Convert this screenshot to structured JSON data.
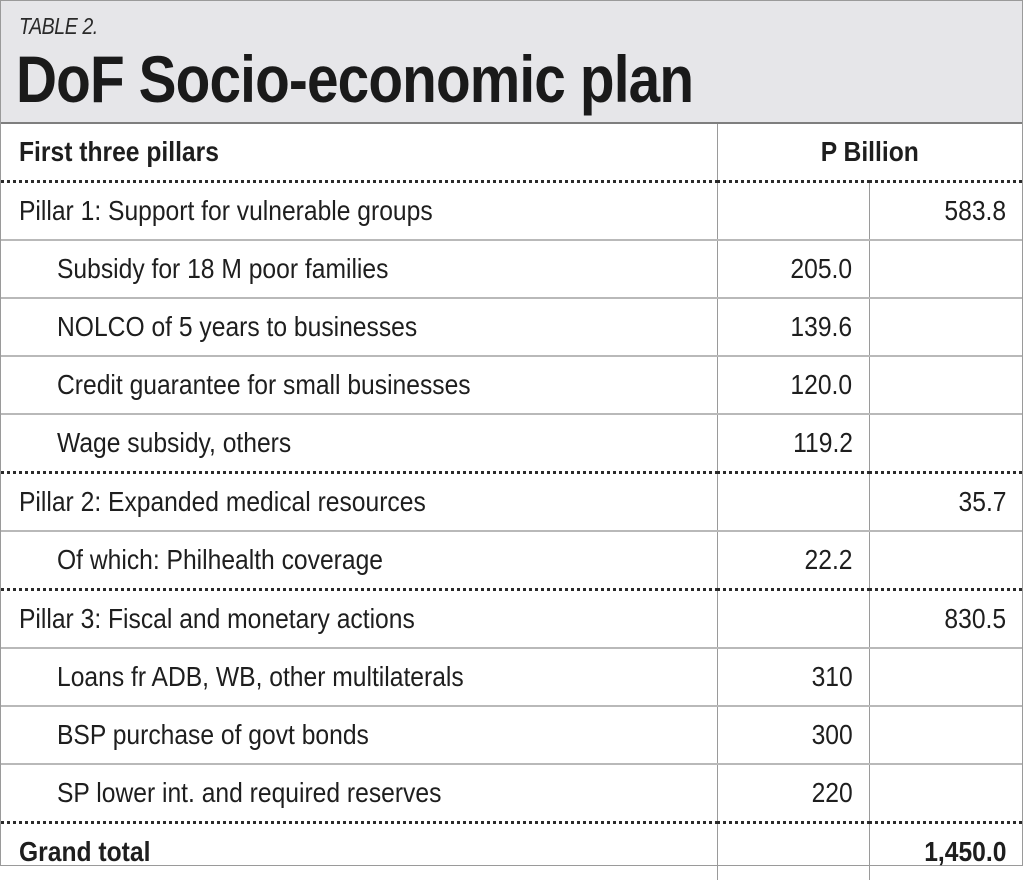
{
  "header": {
    "kicker": "TABLE 2.",
    "title": "DoF Socio-economic plan"
  },
  "table": {
    "columns": {
      "label": "First three pillars",
      "unit": "P Billion"
    },
    "rows": [
      {
        "label": "Pillar 1: Support for vulnerable groups",
        "component": "",
        "total": "583.8",
        "level": "pillar"
      },
      {
        "label": "Subsidy for 18 M poor families",
        "component": "205.0",
        "total": "",
        "level": "item"
      },
      {
        "label": "NOLCO of 5 years to businesses",
        "component": "139.6",
        "total": "",
        "level": "item"
      },
      {
        "label": "Credit guarantee for small businesses",
        "component": "120.0",
        "total": "",
        "level": "item"
      },
      {
        "label": "Wage subsidy, others",
        "component": "119.2",
        "total": "",
        "level": "item"
      },
      {
        "label": "Pillar 2: Expanded medical resources",
        "component": "",
        "total": "35.7",
        "level": "pillar"
      },
      {
        "label": "Of which: Philhealth coverage",
        "component": "22.2",
        "total": "",
        "level": "item"
      },
      {
        "label": "Pillar 3: Fiscal and monetary actions",
        "component": "",
        "total": "830.5",
        "level": "pillar"
      },
      {
        "label": "Loans fr ADB, WB, other multilaterals",
        "component": "310",
        "total": "",
        "level": "item"
      },
      {
        "label": "BSP purchase of govt bonds",
        "component": "300",
        "total": "",
        "level": "item"
      },
      {
        "label": "SP lower int. and required reserves",
        "component": "220",
        "total": "",
        "level": "item"
      }
    ],
    "grand_total": {
      "label": "Grand total",
      "value": "1,450.0"
    }
  }
}
